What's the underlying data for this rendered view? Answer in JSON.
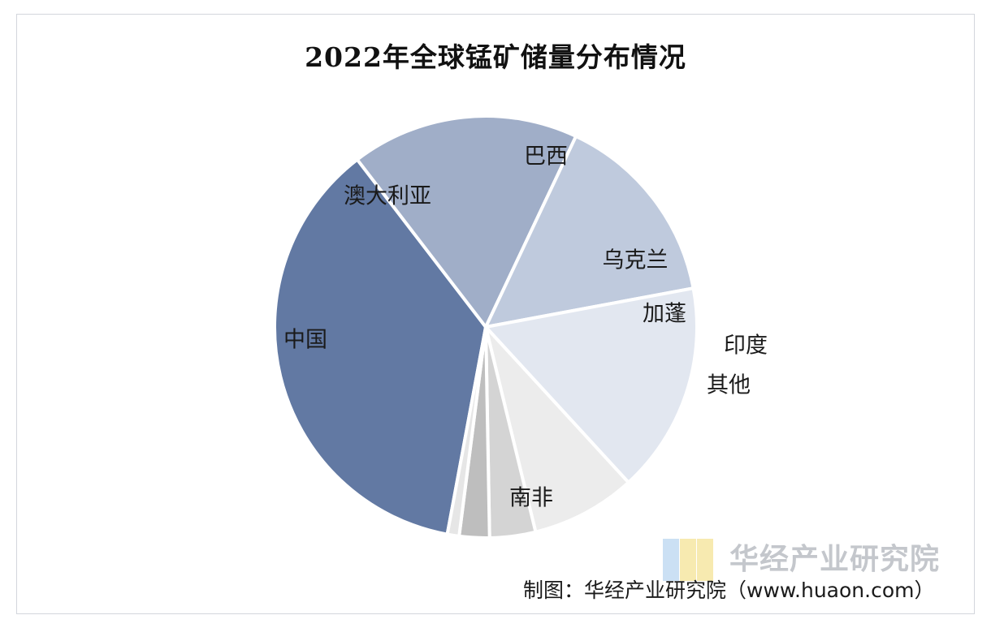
{
  "chart_data": {
    "type": "pie",
    "title": "2022年全球锰矿储量分布情况",
    "categories": [
      "南非",
      "中国",
      "澳大利亚",
      "巴西",
      "乌克兰",
      "加蓬",
      "印度",
      "其他"
    ],
    "values": [
      36.6,
      17.4,
      15.0,
      16.1,
      8.0,
      3.5,
      2.3,
      0.9
    ],
    "units": "%",
    "start_angle_deg": 100.5,
    "direction": "clockwise",
    "colors": [
      "#6279a3",
      "#a0aec8",
      "#bfcadd",
      "#e2e7f0",
      "#ececec",
      "#d4d4d4",
      "#bebebe",
      "#e6e6e6"
    ],
    "legend": "none"
  },
  "watermark": {
    "text": "华经产业研究院",
    "logo_colors": [
      "#a9cdee",
      "#f2dd7c",
      "#f2dd7c"
    ]
  },
  "source_note": "制图：华经产业研究院（www.huaon.com）"
}
